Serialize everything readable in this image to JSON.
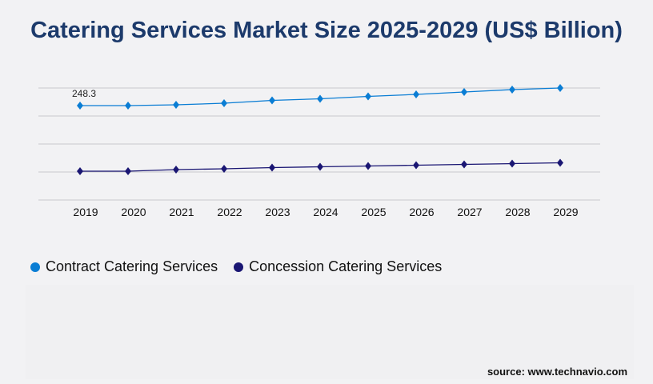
{
  "chart_data": {
    "type": "line",
    "title": "Catering Services Market Size 2025-2029 (US$ Billion)",
    "categories": [
      "2019",
      "2020",
      "2021",
      "2022",
      "2023",
      "2024",
      "2025",
      "2026",
      "2027",
      "2028",
      "2029"
    ],
    "series": [
      {
        "name": "Contract Catering Services",
        "color": "#0a7dd4",
        "values": [
          248.3,
          248.3,
          250.4,
          254.6,
          262.0,
          266.2,
          272.5,
          277.7,
          284.0,
          290.4,
          294.6
        ]
      },
      {
        "name": "Concession Catering Services",
        "color": "#1a1673",
        "values": [
          75.7,
          75.7,
          80.0,
          82.1,
          85.2,
          87.3,
          89.4,
          91.5,
          93.6,
          95.7,
          97.8
        ]
      }
    ],
    "data_labels": [
      {
        "series": 0,
        "index": 0,
        "text": "248.3"
      }
    ],
    "ylim": [
      0,
      294.6
    ],
    "grid": true,
    "legend": "bottom-left",
    "xlabel": "",
    "ylabel": ""
  },
  "source": "source: www.technavio.com"
}
